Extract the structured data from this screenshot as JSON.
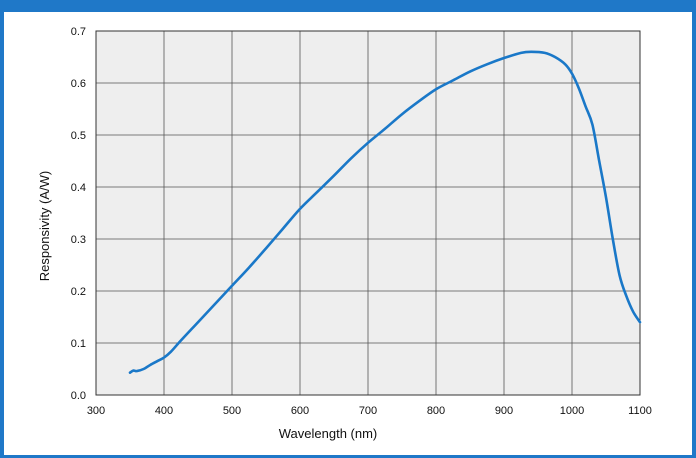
{
  "chart_data": {
    "type": "line",
    "xlabel": "Wavelength (nm)",
    "ylabel": "Responsivity (A/W)",
    "xlim": [
      300,
      1100
    ],
    "ylim": [
      0.0,
      0.7
    ],
    "x_ticks": [
      "300",
      "400",
      "500",
      "600",
      "700",
      "800",
      "900",
      "1000",
      "1100"
    ],
    "y_ticks": [
      "0.0",
      "0.1",
      "0.2",
      "0.3",
      "0.4",
      "0.5",
      "0.6",
      "0.7"
    ],
    "grid": true,
    "series": [
      {
        "color": "#1a78c8",
        "x": [
          350,
          355,
          360,
          370,
          380,
          390,
          400,
          410,
          425,
          450,
          475,
          500,
          525,
          550,
          575,
          600,
          625,
          650,
          675,
          700,
          725,
          750,
          775,
          800,
          825,
          850,
          875,
          900,
          925,
          940,
          960,
          975,
          990,
          1000,
          1010,
          1020,
          1030,
          1040,
          1050,
          1060,
          1070,
          1080,
          1090,
          1100
        ],
        "y": [
          0.043,
          0.047,
          0.046,
          0.05,
          0.058,
          0.065,
          0.072,
          0.083,
          0.105,
          0.14,
          0.175,
          0.21,
          0.245,
          0.282,
          0.32,
          0.358,
          0.39,
          0.422,
          0.455,
          0.485,
          0.512,
          0.54,
          0.565,
          0.588,
          0.605,
          0.622,
          0.636,
          0.648,
          0.658,
          0.66,
          0.658,
          0.65,
          0.636,
          0.618,
          0.59,
          0.555,
          0.52,
          0.45,
          0.38,
          0.3,
          0.23,
          0.19,
          0.16,
          0.14
        ]
      }
    ]
  }
}
